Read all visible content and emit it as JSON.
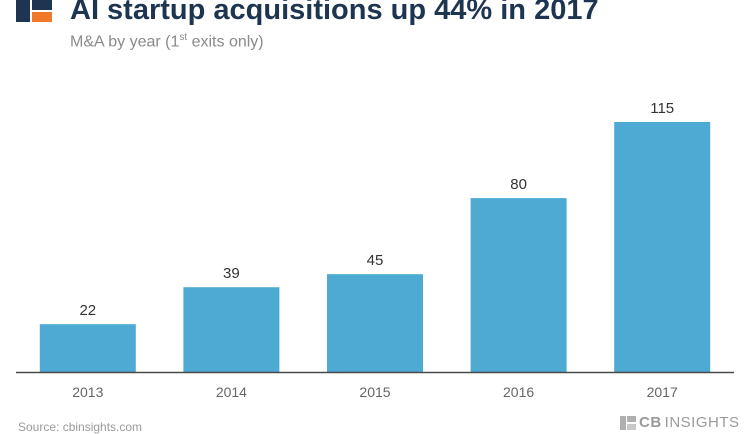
{
  "header": {
    "title": "AI startup acquisitions up 44% in 2017",
    "subtitle_pre": "M&A by year (1",
    "subtitle_sup": "st",
    "subtitle_post": " exits only)"
  },
  "footer": {
    "source": "Source: cbinsights.com",
    "brand_cb": "CB",
    "brand_rest": "INSIGHTS"
  },
  "colors": {
    "bar": "#4dabd3",
    "baseline": "#4a4a4a",
    "logo_dark": "#1d3550",
    "logo_orange": "#f07a2a"
  },
  "chart_data": {
    "type": "bar",
    "title": "AI startup acquisitions up 44% in 2017",
    "subtitle": "M&A by year (1st exits only)",
    "categories": [
      "2013",
      "2014",
      "2015",
      "2016",
      "2017"
    ],
    "values": [
      22,
      39,
      45,
      80,
      115
    ],
    "xlabel": "",
    "ylabel": "",
    "ylim": [
      0,
      120
    ],
    "grid": false,
    "data_labels": true
  }
}
